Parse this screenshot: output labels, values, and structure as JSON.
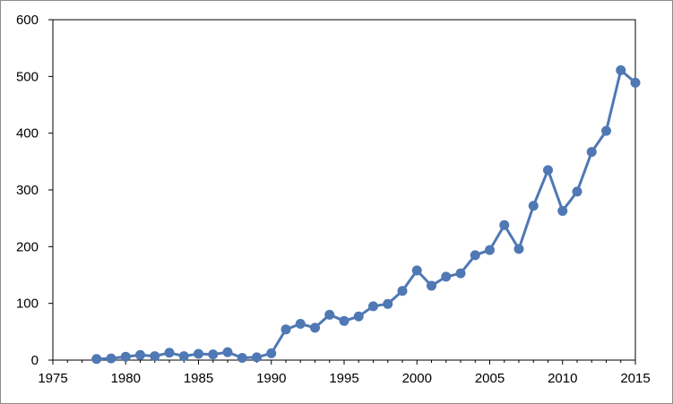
{
  "chart_data": {
    "type": "line",
    "title": "",
    "xlabel": "",
    "ylabel": "",
    "xlim": [
      1975,
      2015
    ],
    "ylim": [
      0,
      600
    ],
    "x_ticks": [
      1975,
      1980,
      1985,
      1990,
      1995,
      2000,
      2005,
      2010,
      2015
    ],
    "y_ticks": [
      0,
      100,
      200,
      300,
      400,
      500,
      600
    ],
    "x_tick_labels": [
      "1975",
      "1980",
      "1985",
      "1990",
      "1995",
      "2000",
      "2005",
      "2010",
      "2015"
    ],
    "y_tick_labels": [
      "0",
      "100",
      "200",
      "300",
      "400",
      "500",
      "600"
    ],
    "grid": false,
    "legend": "none",
    "series": [
      {
        "color": "#4f78b4",
        "x": [
          1978,
          1979,
          1980,
          1981,
          1982,
          1983,
          1984,
          1985,
          1986,
          1987,
          1988,
          1989,
          1990,
          1991,
          1992,
          1993,
          1994,
          1995,
          1996,
          1997,
          1998,
          1999,
          2000,
          2001,
          2002,
          2003,
          2004,
          2005,
          2006,
          2007,
          2008,
          2009,
          2010,
          2011,
          2012,
          2013,
          2014,
          2015
        ],
        "values": [
          2,
          3,
          6,
          9,
          7,
          13,
          7,
          11,
          10,
          14,
          4,
          5,
          12,
          54,
          64,
          57,
          80,
          69,
          77,
          95,
          99,
          122,
          158,
          131,
          147,
          153,
          185,
          194,
          238,
          196,
          272,
          335,
          263,
          297,
          367,
          404,
          511,
          489
        ]
      }
    ]
  }
}
